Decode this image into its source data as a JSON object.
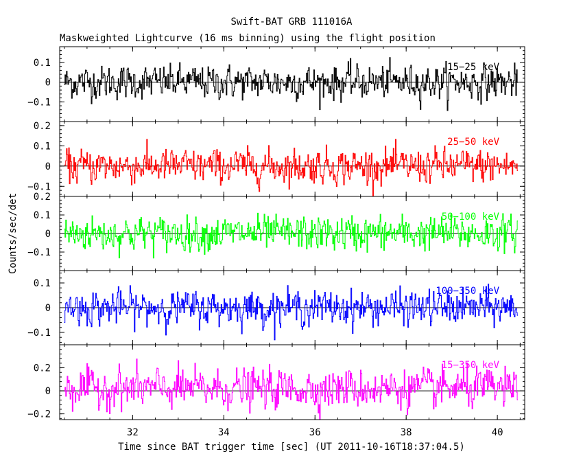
{
  "chart_data": {
    "type": "line",
    "title": "Swift-BAT GRB 111016A",
    "subtitle": "Maskweighted Lightcurve (16 ms binning) using the flight position",
    "xlabel": "Time since BAT trigger time [sec] (UT 2011-10-16T18:37:04.5)",
    "ylabel": "Counts/sec/det",
    "xlim": [
      30.4,
      40.6
    ],
    "x_range_data": [
      30.5,
      40.45
    ],
    "bin_width_sec": 0.016,
    "x_ticks": [
      32,
      34,
      36,
      38,
      40
    ],
    "panels": [
      {
        "name": "15-25 keV",
        "label": "15−25 keV",
        "color": "#000000",
        "ylim": [
          -0.2,
          0.18
        ],
        "y_ticks": [
          -0.1,
          0,
          0.1
        ],
        "y_tick_labels": [
          "−0.1",
          "0",
          "0.1"
        ],
        "noise_amplitude": 0.055,
        "mean_level": 0.0
      },
      {
        "name": "25-50 keV",
        "label": "25−50 keV",
        "color": "#ff0000",
        "ylim": [
          -0.15,
          0.22
        ],
        "y_ticks": [
          -0.1,
          0,
          0.1,
          0.2
        ],
        "y_tick_labels": [
          "−0.1",
          "0",
          "0.1",
          "0.2"
        ],
        "noise_amplitude": 0.055,
        "mean_level": 0.0
      },
      {
        "name": "50-100 keV",
        "label": "50−100 keV",
        "color": "#00ff00",
        "ylim": [
          -0.2,
          0.2
        ],
        "y_ticks": [
          -0.1,
          0,
          0.1,
          0.2
        ],
        "y_tick_labels": [
          "−0.1",
          "0",
          "0.1",
          "0.2"
        ],
        "noise_amplitude": 0.06,
        "mean_level": 0.0
      },
      {
        "name": "100-350 keV",
        "label": "100−350 keV",
        "color": "#0000ff",
        "ylim": [
          -0.15,
          0.15
        ],
        "y_ticks": [
          -0.1,
          0,
          0.1
        ],
        "y_tick_labels": [
          "−0.1",
          "0",
          "0.1"
        ],
        "noise_amplitude": 0.045,
        "mean_level": 0.0
      },
      {
        "name": "15-350 keV",
        "label": "15−350 keV",
        "color": "#ff00ff",
        "ylim": [
          -0.25,
          0.4
        ],
        "y_ticks": [
          -0.2,
          0,
          0.2
        ],
        "y_tick_labels": [
          "−0.2",
          "0",
          "0.2"
        ],
        "noise_amplitude": 0.11,
        "mean_level": 0.02
      }
    ],
    "zero_line": true,
    "grid": false
  }
}
